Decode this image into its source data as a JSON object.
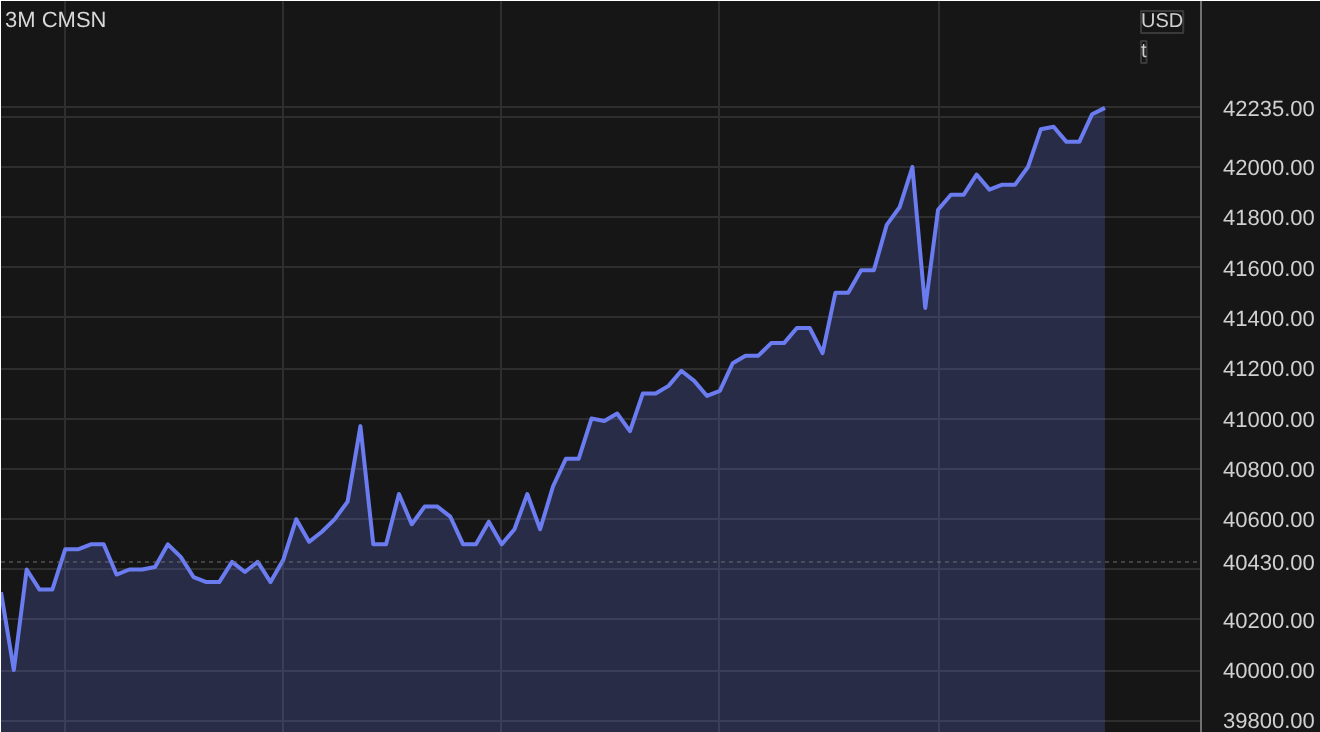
{
  "chart_data": {
    "type": "area",
    "title": "3M CMSN",
    "categories": [
      null,
      null,
      null,
      null,
      null,
      null,
      null,
      null,
      null,
      null,
      null,
      null,
      null,
      null,
      null,
      null,
      null,
      null,
      null,
      null,
      null,
      null,
      null,
      null,
      null,
      null,
      null,
      null,
      null,
      null,
      null,
      null,
      null,
      null,
      null,
      null,
      null,
      null,
      null,
      null,
      null,
      null,
      null,
      null,
      null,
      null,
      null,
      null,
      null,
      null,
      null,
      null,
      null,
      null,
      null,
      null,
      null,
      null,
      null,
      null,
      null,
      null,
      null,
      null,
      null,
      null,
      null,
      null,
      null,
      null,
      null,
      null,
      null,
      null,
      null,
      null,
      null,
      null,
      null,
      null,
      null,
      null,
      null,
      null,
      null,
      null,
      null
    ],
    "series": [
      {
        "color": "#6b7cf0",
        "values": [
          40310,
          40000,
          40400,
          40320,
          40320,
          40480,
          40480,
          40500,
          40500,
          40380,
          40400,
          40400,
          40410,
          40500,
          40450,
          40370,
          40350,
          40350,
          40430,
          40390,
          40430,
          40350,
          40440,
          40600,
          40510,
          40550,
          40600,
          40670,
          40970,
          40500,
          40500,
          40700,
          40580,
          40650,
          40650,
          40610,
          40500,
          40500,
          40590,
          40500,
          40560,
          40700,
          40560,
          40730,
          40840,
          40840,
          41000,
          40990,
          41020,
          40950,
          41100,
          41100,
          41130,
          41190,
          41150,
          41090,
          41110,
          41220,
          41250,
          41250,
          41300,
          41300,
          41360,
          41360,
          41260,
          41500,
          41500,
          41590,
          41590,
          41770,
          41840,
          42000,
          41440,
          41830,
          41890,
          41890,
          41970,
          41910,
          41930,
          41930,
          42000,
          42150,
          42160,
          42100,
          42100,
          42210,
          42235
        ]
      }
    ],
    "ylim": [
      39750,
      42660
    ],
    "yticks": [
      {
        "value": 39800,
        "label": "39800.00"
      },
      {
        "value": 40000,
        "label": "40000.00"
      },
      {
        "value": 40200,
        "label": "40200.00"
      },
      {
        "value": 40400,
        "label": null
      },
      {
        "value": 40600,
        "label": "40600.00"
      },
      {
        "value": 40800,
        "label": "40800.00"
      },
      {
        "value": 41000,
        "label": "41000.00"
      },
      {
        "value": 41200,
        "label": "41200.00"
      },
      {
        "value": 41400,
        "label": "41400.00"
      },
      {
        "value": 41600,
        "label": "41600.00"
      },
      {
        "value": 41800,
        "label": "41800.00"
      },
      {
        "value": 42000,
        "label": "42000.00"
      },
      {
        "value": 42200,
        "label": null
      },
      {
        "value": 42235,
        "label": "42235.00"
      }
    ],
    "ref_lines": [
      {
        "axis": "y",
        "value": 40430,
        "label": "40430.00",
        "color": "#6e6e6e"
      }
    ],
    "annotations": [
      "USD",
      "t"
    ],
    "tick_labels": "y",
    "grid": true
  }
}
